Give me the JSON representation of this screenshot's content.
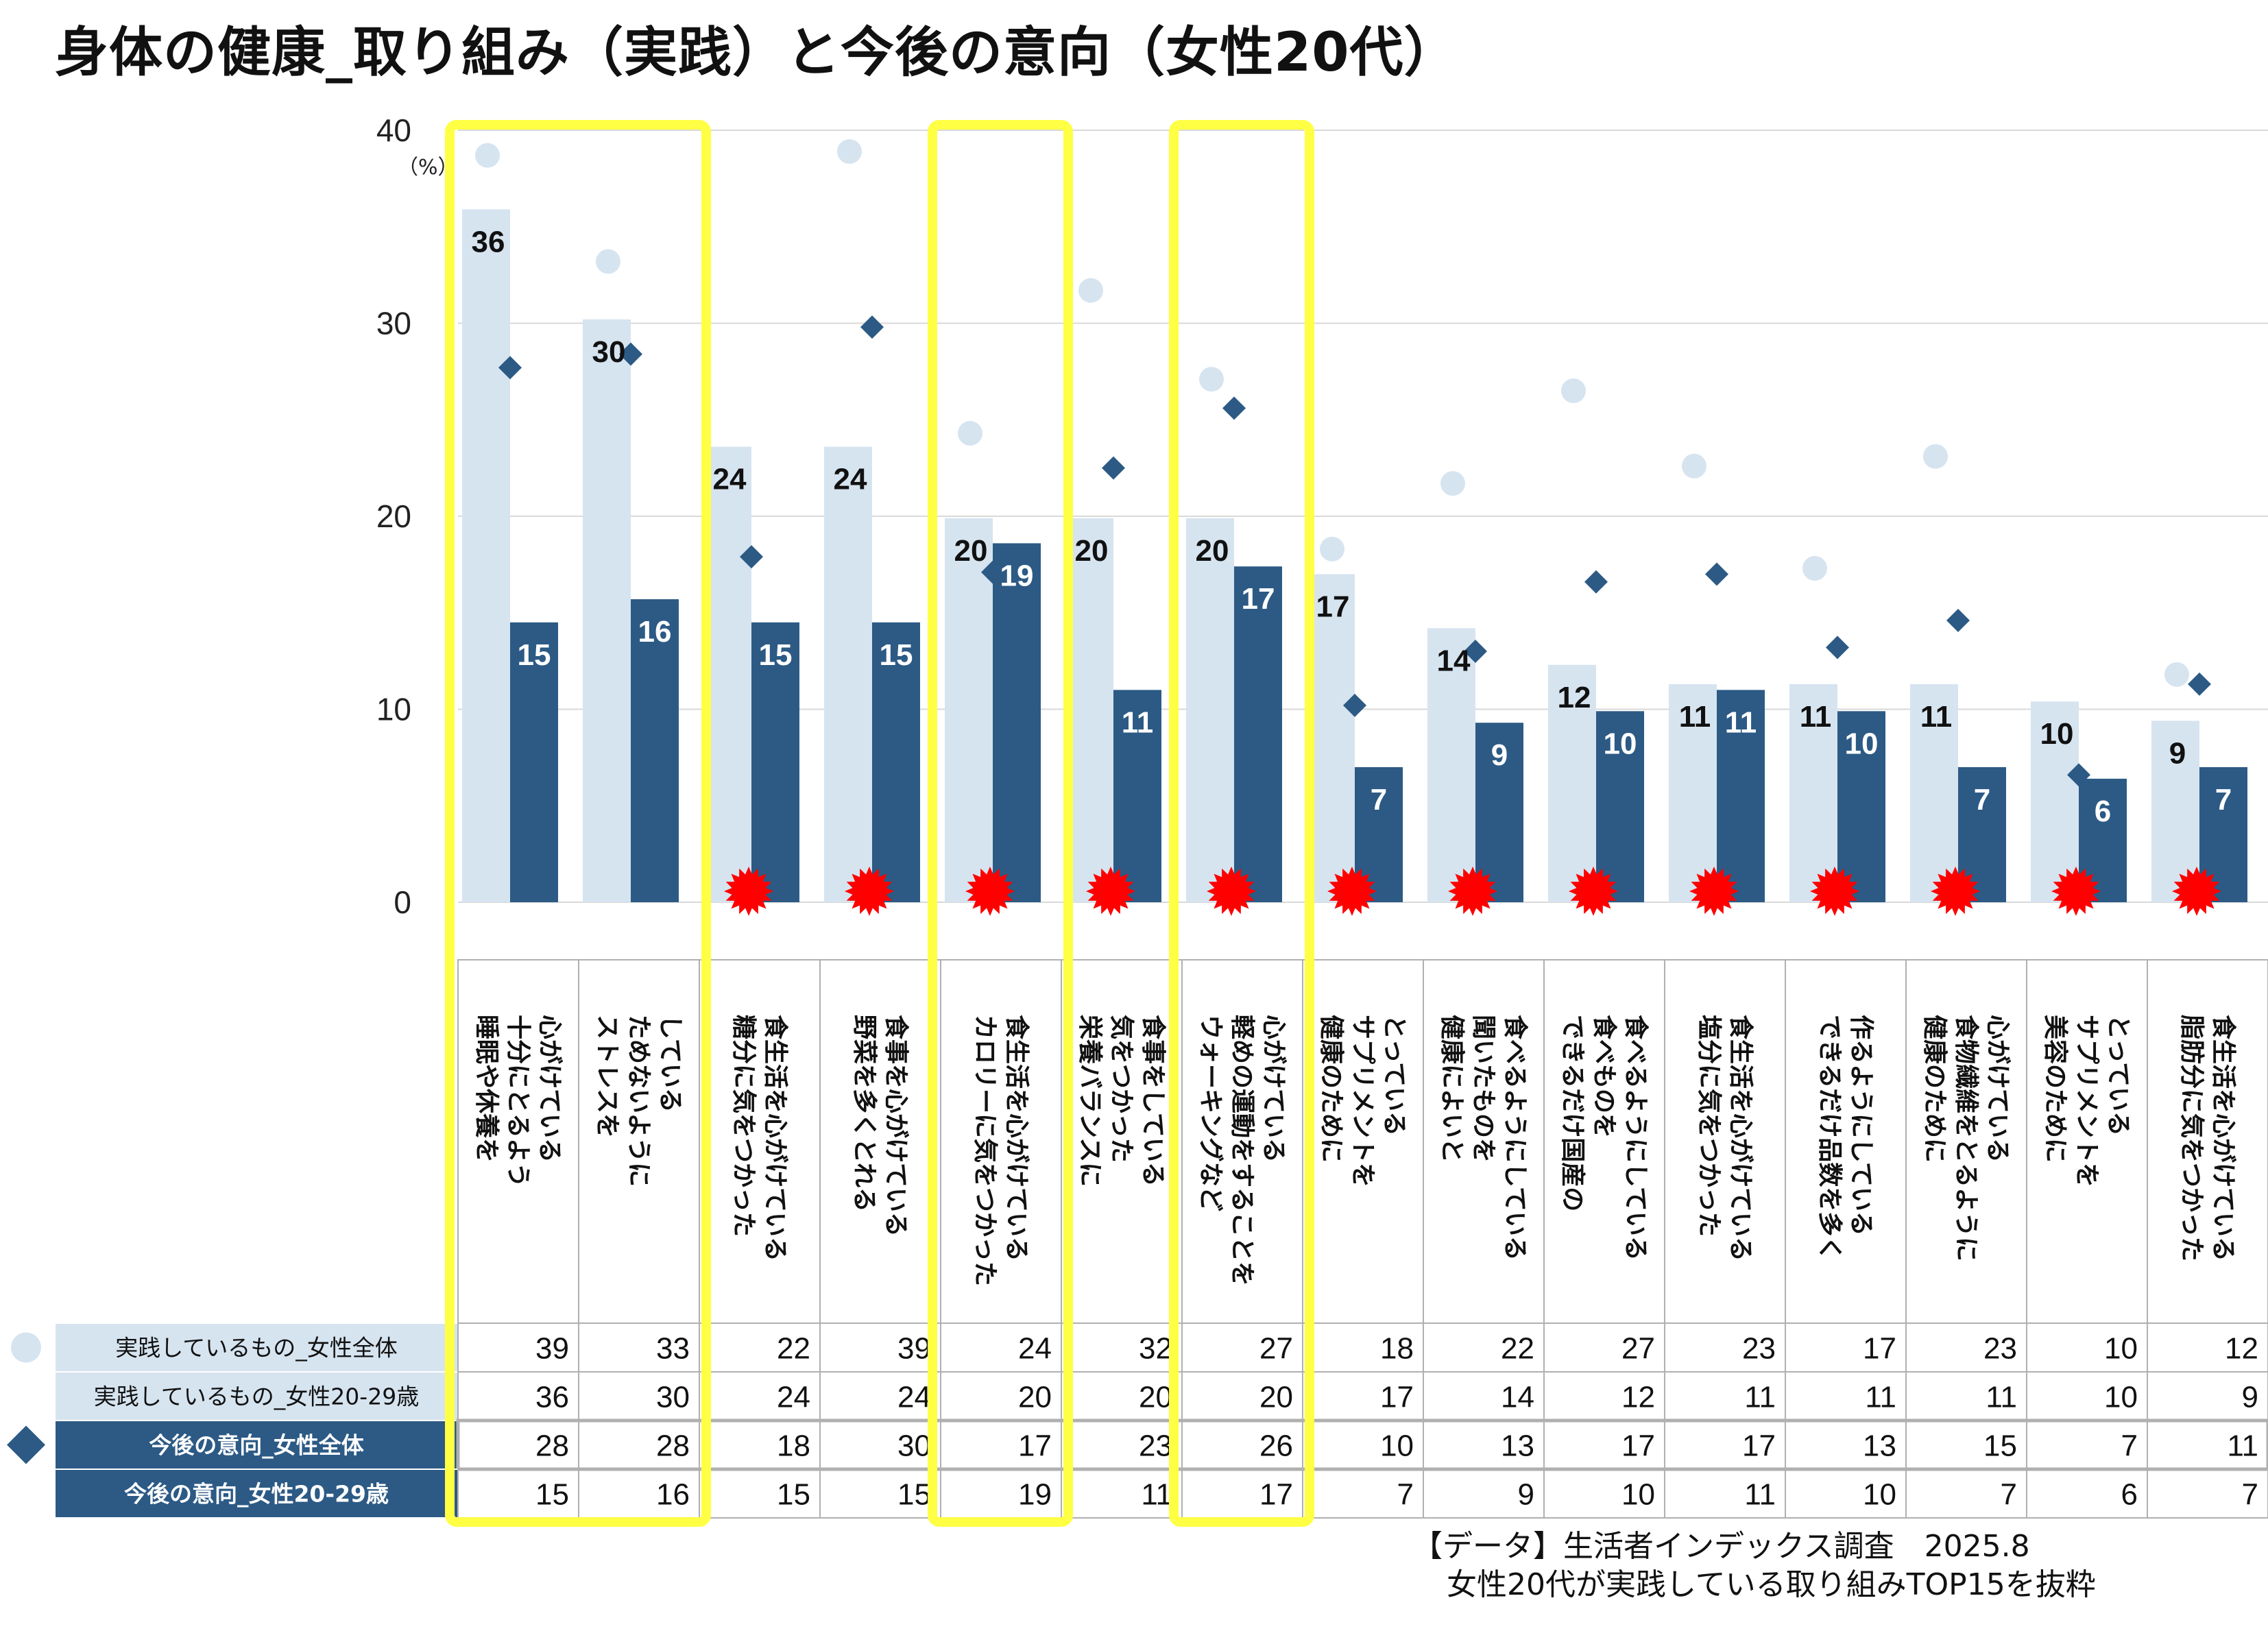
{
  "title": "身体の健康_取り組み（実践）と今後の意向（女性20代）",
  "source_line1": "【データ】生活者インデックス調査　2025.8",
  "source_line2": "女性20代が実践している取り組みTOP15を抜粋",
  "chart_data": {
    "type": "bar",
    "unit": "（%）",
    "ylim": [
      0,
      40
    ],
    "yticks": [
      0,
      10,
      20,
      30,
      40
    ],
    "grid": true,
    "categories": [
      "睡眠や休養を\n十分にとるよう\n心がけている",
      "ストレスを\nためないように\nしている",
      "糖分に気をつかった\n食生活を心がけている",
      "野菜を多くとれる\n食事を心がけている",
      "カロリーに気をつかった\n食生活を心がけている",
      "栄養バランスに\n気をつかった\n食事をしている",
      "ウォーキングなど\n軽めの運動をすることを\n心がけている",
      "健康のために\nサプリメントを\nとっている",
      "健康によいと\n聞いたものを\n食べるようにしている",
      "できるだけ国産の\n食べものを\n食べるようにしている",
      "塩分に気をつかった\n食生活を心がけている",
      "できるだけ品数を多く\n作るようにしている",
      "健康のために\n食物繊維をとるように\n心がけている",
      "美容のために\nサプリメントを\nとっている",
      "脂肪分に気をつかった\n食生活を心がけている"
    ],
    "series": [
      {
        "name": "実践しているもの_女性全体",
        "mark": "circle",
        "color": "#d6e4f0",
        "values": [
          39,
          33,
          22,
          39,
          24,
          32,
          27,
          18,
          22,
          27,
          23,
          17,
          23,
          10,
          12
        ],
        "plot": [
          38.7,
          33.2,
          22.3,
          38.9,
          24.3,
          31.7,
          27.1,
          18.3,
          21.7,
          26.5,
          22.6,
          17.3,
          23.1,
          9.6,
          11.8
        ]
      },
      {
        "name": "実践しているもの_女性20-29歳",
        "mark": "bar",
        "color": "#d6e4f0",
        "values": [
          36,
          30,
          24,
          24,
          20,
          20,
          20,
          17,
          14,
          12,
          11,
          11,
          11,
          10,
          9
        ],
        "plot": [
          35.9,
          30.2,
          23.6,
          23.6,
          19.9,
          19.9,
          19.9,
          17.0,
          14.2,
          12.3,
          11.3,
          11.3,
          11.3,
          10.4,
          9.4
        ]
      },
      {
        "name": "今後の意向_女性全体",
        "mark": "diamond",
        "color": "#2c5a85",
        "values": [
          28,
          28,
          18,
          30,
          17,
          23,
          26,
          10,
          13,
          17,
          17,
          13,
          15,
          7,
          11
        ],
        "plot": [
          27.7,
          28.4,
          17.9,
          29.8,
          17.1,
          22.5,
          25.6,
          10.2,
          13.0,
          16.6,
          17.0,
          13.2,
          14.6,
          6.6,
          11.3
        ]
      },
      {
        "name": "今後の意向_女性20-29歳",
        "mark": "bar",
        "color": "#2c5a85",
        "values": [
          15,
          16,
          15,
          15,
          19,
          11,
          17,
          7,
          9,
          10,
          11,
          10,
          7,
          6,
          7
        ],
        "plot": [
          14.5,
          15.7,
          14.5,
          14.5,
          18.6,
          11.0,
          17.4,
          7.0,
          9.3,
          9.9,
          11.0,
          9.9,
          7.0,
          6.4,
          7.0
        ]
      }
    ],
    "highlight_groups": [
      [
        0,
        1
      ],
      [
        4
      ],
      [
        6
      ]
    ],
    "burst_marks": [
      2,
      3,
      4,
      5,
      6,
      7,
      8,
      9,
      10,
      11,
      12,
      13,
      14
    ],
    "colors": {
      "highlight": "#ffff44",
      "burst": "#ff0000",
      "grid": "#d9d9d9",
      "table_line": "#b0b0b0"
    }
  }
}
